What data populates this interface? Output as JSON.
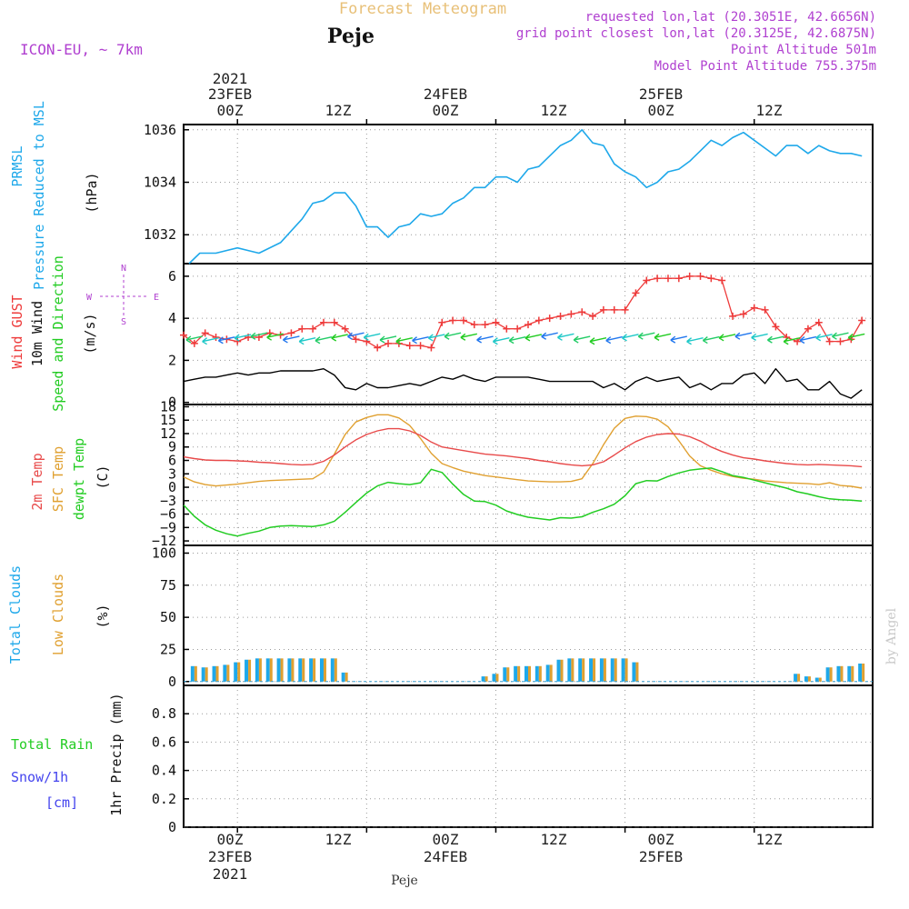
{
  "header": {
    "title": "Forecast Meteogram",
    "location": "Peje",
    "model": "ICON-EU, ~ 7km",
    "requested": "requested lon,lat (20.3051E, 42.6656N)",
    "gridpoint": "grid point closest lon,lat (20.3125E, 42.6875N)",
    "point_altitude": "Point Altitude 501m",
    "model_altitude": "Model Point Altitude 755.375m"
  },
  "footer": {
    "location": "Peje",
    "watermark": "by Angel"
  },
  "time_axis": {
    "top_year": "2021",
    "top_dates": [
      "23FEB",
      "24FEB",
      "25FEB"
    ],
    "bottom_year": "2021",
    "bottom_dates": [
      "23FEB",
      "24FEB",
      "25FEB"
    ],
    "hours": [
      "00Z",
      "12Z",
      "00Z",
      "12Z",
      "00Z",
      "12Z"
    ],
    "x_range_hours": [
      -5,
      59
    ]
  },
  "colors": {
    "pressure": "#1ea8ea",
    "gust": "#ee3a3a",
    "wind": "#000000",
    "temp2m": "#e84a4a",
    "sfc": "#e0a030",
    "dewpt": "#22cc22",
    "clouds_total": "#1ea8ea",
    "clouds_low": "#e0a030",
    "rain": "#22cc22",
    "snow": "#4444ee",
    "header": "#b040d0",
    "title": "#e8c078"
  },
  "panels": {
    "pressure": {
      "label1": "PRMSL",
      "label2": "Pressure Reduced to MSL",
      "unit": "(hPa)"
    },
    "wind": {
      "label_gust": "Wind GUST",
      "label_wind": "10m Wind",
      "label_speed": "Speed and Direction",
      "unit": "(m/s)",
      "compass": {
        "n": "N",
        "s": "S",
        "w": "W",
        "e": "E"
      }
    },
    "temp": {
      "label_2m": "2m Temp",
      "label_sfc": "SFC Temp",
      "label_dewpt": "dewpt Temp",
      "unit": "(C)"
    },
    "clouds": {
      "label_total": "Total Clouds",
      "label_low": "Low Clouds",
      "unit": "(%)"
    },
    "precip": {
      "label_total": "Total Rain",
      "label_snow": "Snow/1h",
      "label_cm": "[cm]",
      "label_precip": "1hr Precip (mm)"
    }
  },
  "chart_data": [
    {
      "type": "line",
      "title": "PRMSL Pressure Reduced to MSL",
      "ylabel": "(hPa)",
      "ylim": [
        1030.9,
        1036.2
      ],
      "yticks": [
        1032,
        1034,
        1036
      ],
      "grid": true,
      "series": [
        {
          "name": "PRMSL",
          "x": [
            -4.5,
            -3.5,
            -2,
            0,
            1,
            2,
            4,
            6,
            7,
            8,
            9,
            10,
            11,
            12,
            13,
            14,
            15,
            16,
            17,
            18,
            19,
            20,
            21,
            22,
            23,
            24,
            25,
            26,
            27,
            28,
            29,
            30,
            31,
            32,
            33,
            34,
            35,
            36,
            37,
            38,
            39,
            40,
            41,
            42,
            43,
            44,
            45,
            46,
            47,
            48,
            49,
            50,
            51,
            52,
            53,
            54,
            55,
            56,
            57,
            58
          ],
          "values": [
            1030.9,
            1031.3,
            1031.3,
            1031.5,
            1031.4,
            1031.3,
            1031.7,
            1032.6,
            1033.2,
            1033.3,
            1033.6,
            1033.6,
            1033.1,
            1032.3,
            1032.3,
            1031.9,
            1032.3,
            1032.4,
            1032.8,
            1032.7,
            1032.8,
            1033.2,
            1033.4,
            1033.8,
            1033.8,
            1034.2,
            1034.2,
            1034.0,
            1034.5,
            1034.6,
            1035.0,
            1035.4,
            1035.6,
            1036.0,
            1035.5,
            1035.4,
            1034.7,
            1034.4,
            1034.2,
            1033.8,
            1034.0,
            1034.4,
            1034.5,
            1034.8,
            1035.2,
            1035.6,
            1035.4,
            1035.7,
            1035.9,
            1035.6,
            1035.3,
            1035.0,
            1035.4,
            1035.4,
            1035.1,
            1035.4,
            1035.2,
            1035.1,
            1035.1,
            1035.0
          ]
        }
      ]
    },
    {
      "type": "line",
      "title": "Wind GUST 10m Wind Speed and Direction",
      "ylabel": "(m/s)",
      "ylim": [
        -0.1,
        6.6
      ],
      "yticks": [
        0,
        2,
        4,
        6
      ],
      "grid": true,
      "x": [
        -5,
        -4,
        -3,
        -2,
        -1,
        0,
        1,
        2,
        3,
        4,
        5,
        6,
        7,
        8,
        9,
        10,
        11,
        12,
        13,
        14,
        15,
        16,
        17,
        18,
        19,
        20,
        21,
        22,
        23,
        24,
        25,
        26,
        27,
        28,
        29,
        30,
        31,
        32,
        33,
        34,
        35,
        36,
        37,
        38,
        39,
        40,
        41,
        42,
        43,
        44,
        45,
        46,
        47,
        48,
        49,
        50,
        51,
        52,
        53,
        54,
        55,
        56,
        57,
        58
      ],
      "series": [
        {
          "name": "Wind GUST",
          "values": [
            3.2,
            2.8,
            3.3,
            3.1,
            3.0,
            2.9,
            3.1,
            3.1,
            3.3,
            3.2,
            3.3,
            3.5,
            3.5,
            3.8,
            3.8,
            3.5,
            3.0,
            2.9,
            2.6,
            2.8,
            2.8,
            2.7,
            2.7,
            2.6,
            3.8,
            3.9,
            3.9,
            3.7,
            3.7,
            3.8,
            3.5,
            3.5,
            3.7,
            3.9,
            4.0,
            4.1,
            4.2,
            4.3,
            4.1,
            4.4,
            4.4,
            4.4,
            5.2,
            5.8,
            5.9,
            5.9,
            5.9,
            6.0,
            6.0,
            5.9,
            5.8,
            4.1,
            4.2,
            4.5,
            4.4,
            3.6,
            3.1,
            2.9,
            3.5,
            3.8,
            2.9,
            2.9,
            3.0,
            3.9
          ]
        },
        {
          "name": "10m Wind",
          "values": [
            1.0,
            1.1,
            1.2,
            1.2,
            1.3,
            1.4,
            1.3,
            1.4,
            1.4,
            1.5,
            1.5,
            1.5,
            1.5,
            1.6,
            1.3,
            0.7,
            0.6,
            0.9,
            0.7,
            0.7,
            0.8,
            0.9,
            0.8,
            1.0,
            1.2,
            1.1,
            1.3,
            1.1,
            1.0,
            1.2,
            1.2,
            1.2,
            1.2,
            1.1,
            1.0,
            1.0,
            1.0,
            1.0,
            1.0,
            0.7,
            0.9,
            0.6,
            1.0,
            1.2,
            1.0,
            1.1,
            1.2,
            0.7,
            0.9,
            0.6,
            0.9,
            0.9,
            1.3,
            1.4,
            0.9,
            1.6,
            1.0,
            1.1,
            0.6,
            0.6,
            1.0,
            0.4,
            0.2,
            0.6
          ]
        }
      ]
    },
    {
      "type": "line",
      "title": "2m Temp SFC Temp dewpt Temp",
      "ylabel": "(C)",
      "ylim": [
        -13,
        18.5
      ],
      "yticks": [
        -12,
        -9,
        -6,
        -3,
        0,
        3,
        6,
        9,
        12,
        15,
        18
      ],
      "grid": true,
      "x": [
        -5,
        -4,
        -3,
        -2,
        -1,
        0,
        1,
        2,
        3,
        4,
        5,
        6,
        7,
        8,
        9,
        10,
        11,
        12,
        13,
        14,
        15,
        16,
        17,
        18,
        19,
        20,
        21,
        22,
        23,
        24,
        25,
        26,
        27,
        28,
        29,
        30,
        31,
        32,
        33,
        34,
        35,
        36,
        37,
        38,
        39,
        40,
        41,
        42,
        43,
        44,
        45,
        46,
        47,
        48,
        49,
        50,
        51,
        52,
        53,
        54,
        55,
        56,
        57,
        58
      ],
      "series": [
        {
          "name": "2m Temp",
          "values": [
            6.8,
            6.4,
            6.1,
            6.0,
            6.0,
            5.9,
            5.8,
            5.6,
            5.5,
            5.3,
            5.1,
            5.0,
            5.1,
            5.8,
            7.2,
            9.0,
            10.6,
            11.8,
            12.6,
            13.1,
            13.1,
            12.6,
            11.6,
            10.1,
            9.0,
            8.6,
            8.2,
            7.8,
            7.4,
            7.2,
            7.0,
            6.7,
            6.4,
            6.0,
            5.7,
            5.3,
            5.0,
            4.8,
            5.0,
            5.7,
            7.2,
            8.8,
            10.2,
            11.2,
            11.8,
            12.0,
            11.9,
            11.3,
            10.3,
            9.0,
            8.0,
            7.2,
            6.6,
            6.3,
            5.9,
            5.6,
            5.3,
            5.1,
            5.0,
            5.1,
            5.0,
            4.9,
            4.8,
            4.6
          ]
        },
        {
          "name": "SFC Temp",
          "values": [
            2.3,
            1.2,
            0.6,
            0.3,
            0.5,
            0.7,
            1.0,
            1.3,
            1.5,
            1.6,
            1.7,
            1.8,
            1.9,
            3.4,
            7.4,
            11.8,
            14.6,
            15.6,
            16.2,
            16.2,
            15.5,
            13.8,
            10.9,
            7.6,
            5.3,
            4.4,
            3.6,
            3.1,
            2.6,
            2.3,
            2.0,
            1.7,
            1.4,
            1.3,
            1.2,
            1.2,
            1.3,
            1.9,
            5.3,
            9.5,
            13.2,
            15.4,
            15.9,
            15.8,
            15.2,
            13.5,
            10.4,
            7.0,
            4.8,
            3.8,
            3.0,
            2.4,
            2.0,
            1.8,
            1.4,
            1.2,
            1.0,
            0.9,
            0.8,
            0.6,
            1.0,
            0.4,
            0.2,
            -0.2
          ]
        },
        {
          "name": "dewpt Temp",
          "values": [
            -4.0,
            -6.5,
            -8.4,
            -9.6,
            -10.4,
            -10.9,
            -10.3,
            -9.8,
            -9.0,
            -8.7,
            -8.6,
            -8.7,
            -8.8,
            -8.4,
            -7.6,
            -5.6,
            -3.4,
            -1.3,
            0.3,
            1.1,
            0.8,
            0.6,
            1.0,
            4.0,
            3.3,
            0.7,
            -1.6,
            -3.1,
            -3.2,
            -4.0,
            -5.3,
            -6.1,
            -6.7,
            -7.0,
            -7.3,
            -6.8,
            -6.9,
            -6.6,
            -5.6,
            -4.8,
            -3.8,
            -1.9,
            0.8,
            1.5,
            1.4,
            2.4,
            3.2,
            3.8,
            4.1,
            4.3,
            3.5,
            2.6,
            2.2,
            1.6,
            1.0,
            0.4,
            -0.2,
            -1.0,
            -1.5,
            -2.1,
            -2.6,
            -2.8,
            -2.9,
            -3.1
          ]
        }
      ]
    },
    {
      "type": "bar",
      "title": "Total Clouds Low Clouds",
      "ylabel": "(%)",
      "ylim": [
        -3,
        106
      ],
      "yticks": [
        0,
        25,
        50,
        75,
        100
      ],
      "grid": true,
      "x": [
        -4,
        -3,
        -2,
        -1,
        0,
        1,
        2,
        3,
        4,
        5,
        6,
        7,
        8,
        9,
        10,
        11,
        12,
        13,
        14,
        15,
        16,
        17,
        18,
        19,
        20,
        21,
        22,
        23,
        24,
        25,
        26,
        27,
        28,
        29,
        30,
        31,
        32,
        33,
        34,
        35,
        36,
        37,
        38,
        39,
        40,
        41,
        42,
        43,
        44,
        45,
        46,
        47,
        48,
        49,
        50,
        51,
        52,
        53,
        54,
        55,
        56,
        57,
        58
      ],
      "series": [
        {
          "name": "Total Clouds",
          "values": [
            12,
            11,
            12,
            13,
            15,
            17,
            18,
            18,
            18,
            18,
            18,
            18,
            18,
            18,
            7,
            0,
            0,
            0,
            0,
            0,
            0,
            0,
            0,
            0,
            0,
            0,
            0,
            4,
            6,
            11,
            12,
            12,
            12,
            13,
            17,
            18,
            18,
            18,
            18,
            18,
            18,
            15,
            0,
            0,
            0,
            0,
            0,
            0,
            0,
            0,
            0,
            0,
            0,
            0,
            0,
            0,
            6,
            4,
            3,
            11,
            12,
            12,
            14
          ]
        },
        {
          "name": "Low Clouds",
          "values": [
            12,
            11,
            12,
            13,
            15,
            17,
            18,
            18,
            18,
            18,
            18,
            18,
            18,
            18,
            7,
            0,
            0,
            0,
            0,
            0,
            0,
            0,
            0,
            0,
            0,
            0,
            0,
            4,
            6,
            11,
            12,
            12,
            12,
            13,
            17,
            18,
            18,
            18,
            18,
            18,
            18,
            15,
            0,
            0,
            0,
            0,
            0,
            0,
            0,
            0,
            0,
            0,
            0,
            0,
            0,
            0,
            6,
            4,
            3,
            11,
            12,
            12,
            14
          ]
        }
      ]
    },
    {
      "type": "line",
      "title": "Total Rain Snow/1h",
      "ylabel": "1hr Precip (mm)",
      "ylim": [
        0,
        1.0
      ],
      "yticks": [
        0,
        0.2,
        0.4,
        0.6,
        0.8
      ],
      "grid": true,
      "series": [
        {
          "name": "Total Rain",
          "x": [
            -5,
            59
          ],
          "values": [
            0,
            0
          ]
        },
        {
          "name": "Snow/1h",
          "x": [
            -5,
            59
          ],
          "values": [
            0,
            0
          ]
        }
      ]
    }
  ]
}
